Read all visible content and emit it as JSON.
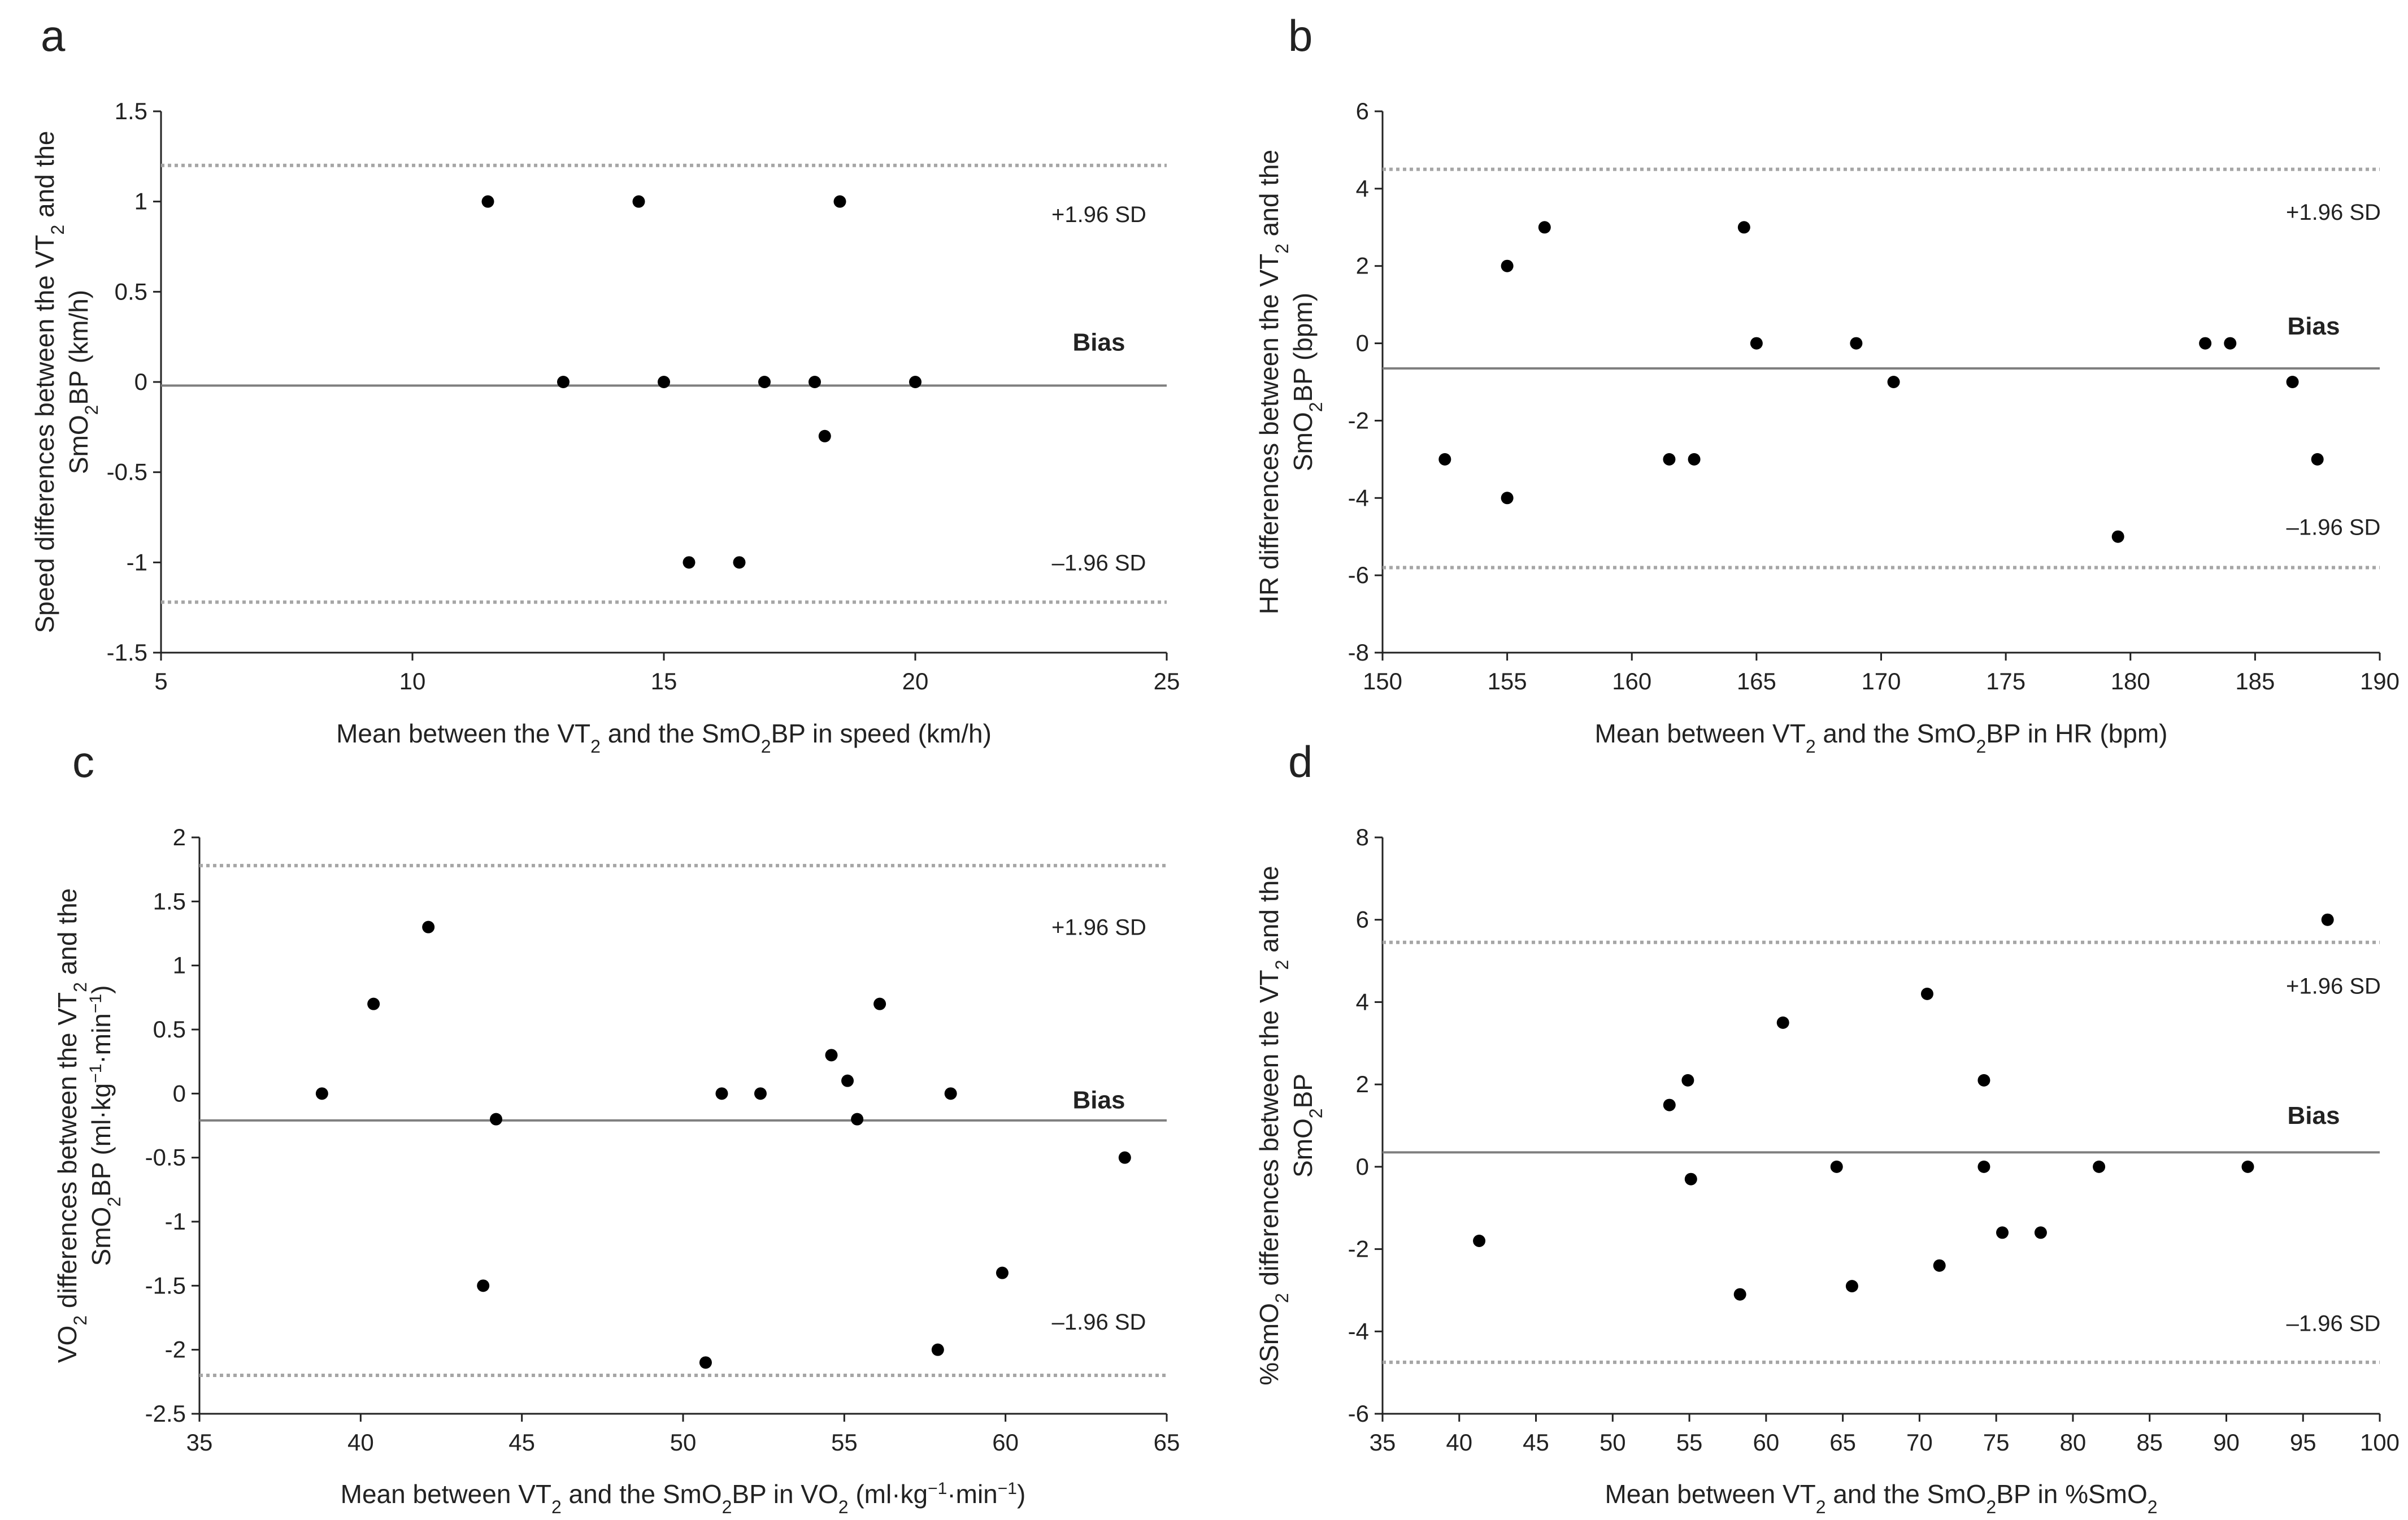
{
  "colors": {
    "axis": "#222222",
    "points": "#000000",
    "bias_line": "#7f7f7f",
    "limit_line": "#a6a6a6",
    "background": "#ffffff"
  },
  "chart_data": [
    {
      "panel": "a",
      "type": "scatter",
      "title": "",
      "xlabel_parts": [
        {
          "t": "Mean between the VT"
        },
        {
          "t": "2",
          "sub": true
        },
        {
          "t": " and the SmO"
        },
        {
          "t": "2",
          "sub": true
        },
        {
          "t": "BP in speed (km/h)"
        }
      ],
      "ylabel_lines": [
        [
          {
            "t": "Speed differences between the VT"
          },
          {
            "t": "2",
            "sub": true
          },
          {
            "t": " and the"
          }
        ],
        [
          {
            "t": "SmO"
          },
          {
            "t": "2",
            "sub": true
          },
          {
            "t": "BP (km/h)"
          }
        ]
      ],
      "xlim": [
        5,
        25
      ],
      "ylim": [
        -1.5,
        1.5
      ],
      "xticks": [
        "5",
        "10",
        "15",
        "20",
        "25"
      ],
      "yticks": [
        "1.5",
        "1",
        "0.5",
        "0",
        "-0.5",
        "-1",
        "-1.5"
      ],
      "bias": -0.02,
      "upper_loa": 1.2,
      "lower_loa": -1.22,
      "upper_label": "+1.96 SD",
      "bias_label": "Bias",
      "lower_label": "–1.96 SD",
      "upper_label_y": 0.93,
      "bias_label_y": 0.22,
      "lower_label_y": -1.0,
      "points": [
        [
          11.5,
          1
        ],
        [
          13,
          0
        ],
        [
          14.5,
          1
        ],
        [
          15,
          0
        ],
        [
          15.5,
          -1
        ],
        [
          16.5,
          -1
        ],
        [
          17,
          0
        ],
        [
          18,
          0
        ],
        [
          18.2,
          -0.3
        ],
        [
          18.5,
          1
        ],
        [
          20,
          0
        ]
      ]
    },
    {
      "panel": "b",
      "type": "scatter",
      "title": "",
      "xlabel_parts": [
        {
          "t": "Mean between VT"
        },
        {
          "t": "2",
          "sub": true
        },
        {
          "t": " and the SmO"
        },
        {
          "t": "2",
          "sub": true
        },
        {
          "t": "BP in HR (bpm)"
        }
      ],
      "ylabel_lines": [
        [
          {
            "t": "HR differences between the VT"
          },
          {
            "t": "2",
            "sub": true
          },
          {
            "t": " and the"
          }
        ],
        [
          {
            "t": "SmO"
          },
          {
            "t": "2",
            "sub": true
          },
          {
            "t": "BP (bpm)"
          }
        ]
      ],
      "xlim": [
        150,
        190
      ],
      "ylim": [
        -8,
        6
      ],
      "xticks": [
        "150",
        "155",
        "160",
        "165",
        "170",
        "175",
        "180",
        "185",
        "190"
      ],
      "yticks": [
        "6",
        "4",
        "2",
        "0",
        "-2",
        "-4",
        "-6",
        "-8"
      ],
      "bias": -0.65,
      "upper_loa": 4.5,
      "lower_loa": -5.8,
      "upper_label": "+1.96 SD",
      "bias_label": "Bias",
      "lower_label": "–1.96 SD",
      "upper_label_y": 3.4,
      "bias_label_y": 0.45,
      "lower_label_y": -4.75,
      "points": [
        [
          152.5,
          -3
        ],
        [
          155,
          2
        ],
        [
          155,
          -4
        ],
        [
          156.5,
          3
        ],
        [
          161.5,
          -3
        ],
        [
          162.5,
          -3
        ],
        [
          164.5,
          3
        ],
        [
          165,
          0
        ],
        [
          169,
          0
        ],
        [
          170.5,
          -1
        ],
        [
          179.5,
          -5
        ],
        [
          183,
          0
        ],
        [
          184,
          0
        ],
        [
          186.5,
          -1
        ],
        [
          187.5,
          -3
        ]
      ]
    },
    {
      "panel": "c",
      "type": "scatter",
      "title": "",
      "xlabel_parts": [
        {
          "t": "Mean between VT"
        },
        {
          "t": "2",
          "sub": true
        },
        {
          "t": " and the SmO"
        },
        {
          "t": "2",
          "sub": true
        },
        {
          "t": "BP in VO"
        },
        {
          "t": "2",
          "sub": true
        },
        {
          "t": " (ml·kg"
        },
        {
          "t": "−1",
          "sup": true
        },
        {
          "t": "·min"
        },
        {
          "t": "−1",
          "sup": true
        },
        {
          "t": ")"
        }
      ],
      "ylabel_lines": [
        [
          {
            "t": "VO"
          },
          {
            "t": "2",
            "sub": true
          },
          {
            "t": " differences between the VT"
          },
          {
            "t": "2",
            "sub": true
          },
          {
            "t": " and the"
          }
        ],
        [
          {
            "t": "SmO"
          },
          {
            "t": "2",
            "sub": true
          },
          {
            "t": "BP (ml·kg"
          },
          {
            "t": "−1",
            "sup": true
          },
          {
            "t": "·min"
          },
          {
            "t": "−1",
            "sup": true
          },
          {
            "t": ")"
          }
        ]
      ],
      "xlim": [
        35,
        65
      ],
      "ylim": [
        -2.5,
        2
      ],
      "xticks": [
        "35",
        "40",
        "45",
        "50",
        "55",
        "60",
        "65"
      ],
      "yticks": [
        "2",
        "1.5",
        "1",
        "0.5",
        "0",
        "-0.5",
        "-1",
        "-1.5",
        "-2",
        "-2.5"
      ],
      "bias": -0.21,
      "upper_loa": 1.78,
      "lower_loa": -2.2,
      "upper_label": "+1.96 SD",
      "bias_label": "Bias",
      "lower_label": "–1.96 SD",
      "upper_label_y": 1.3,
      "bias_label_y": -0.05,
      "lower_label_y": -1.78,
      "points": [
        [
          38.8,
          0
        ],
        [
          40.4,
          0.7
        ],
        [
          42.1,
          1.3
        ],
        [
          43.8,
          -1.5
        ],
        [
          44.2,
          -0.2
        ],
        [
          50.7,
          -2.1
        ],
        [
          51.2,
          0
        ],
        [
          52.4,
          0
        ],
        [
          54.6,
          0.3
        ],
        [
          55.1,
          0.1
        ],
        [
          55.4,
          -0.2
        ],
        [
          56.1,
          0.7
        ],
        [
          57.9,
          -2
        ],
        [
          58.3,
          0
        ],
        [
          59.9,
          -1.4
        ],
        [
          63.7,
          -0.5
        ]
      ]
    },
    {
      "panel": "d",
      "type": "scatter",
      "title": "",
      "xlabel_parts": [
        {
          "t": "Mean between VT"
        },
        {
          "t": "2",
          "sub": true
        },
        {
          "t": " and the SmO"
        },
        {
          "t": "2",
          "sub": true
        },
        {
          "t": "BP in %SmO"
        },
        {
          "t": "2",
          "sub": true
        }
      ],
      "ylabel_lines": [
        [
          {
            "t": "%SmO"
          },
          {
            "t": "2",
            "sub": true
          },
          {
            "t": " differences between the VT"
          },
          {
            "t": "2",
            "sub": true
          },
          {
            "t": " and the"
          }
        ],
        [
          {
            "t": "SmO"
          },
          {
            "t": "2",
            "sub": true
          },
          {
            "t": "BP"
          }
        ]
      ],
      "xlim": [
        35,
        100
      ],
      "ylim": [
        -6,
        8
      ],
      "xticks": [
        "35",
        "40",
        "45",
        "50",
        "55",
        "60",
        "65",
        "70",
        "75",
        "80",
        "85",
        "90",
        "95",
        "100"
      ],
      "yticks": [
        "8",
        "6",
        "4",
        "2",
        "0",
        "-2",
        "-4",
        "-6"
      ],
      "bias": 0.35,
      "upper_loa": 5.45,
      "lower_loa": -4.75,
      "upper_label": "+1.96 SD",
      "bias_label": "Bias",
      "lower_label": "–1.96 SD",
      "upper_label_y": 4.4,
      "bias_label_y": 1.25,
      "lower_label_y": -3.8,
      "points": [
        [
          41.3,
          -1.8
        ],
        [
          53.7,
          1.5
        ],
        [
          54.9,
          2.1
        ],
        [
          55.1,
          -0.3
        ],
        [
          58.3,
          -3.1
        ],
        [
          61.1,
          3.5
        ],
        [
          64.6,
          0
        ],
        [
          65.6,
          -2.9
        ],
        [
          70.5,
          4.2
        ],
        [
          71.3,
          -2.4
        ],
        [
          74.2,
          2.1
        ],
        [
          74.2,
          0
        ],
        [
          75.4,
          -1.6
        ],
        [
          77.9,
          -1.6
        ],
        [
          81.7,
          0
        ],
        [
          91.4,
          0
        ],
        [
          96.6,
          6
        ]
      ]
    }
  ]
}
